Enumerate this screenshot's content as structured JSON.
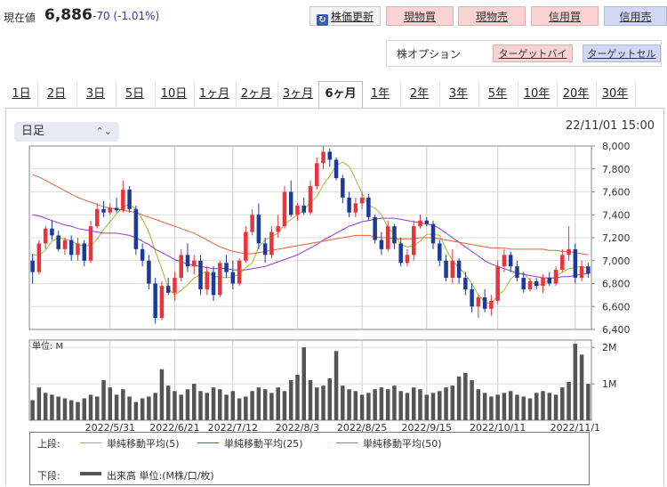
{
  "header": {
    "price_label": "現在値",
    "price": "6,886",
    "change": "-70 (-1.01%)",
    "update_button": "株価更新",
    "buttons": [
      "現物買",
      "現物売",
      "信用買",
      "信用売"
    ],
    "option_label": "株オプション",
    "option_buttons": [
      "ターゲットバイ",
      "ターゲットセル"
    ]
  },
  "tabs": [
    "1日",
    "2日",
    "3日",
    "5日",
    "10日",
    "1ヶ月",
    "2ヶ月",
    "3ヶ月",
    "6ヶ月",
    "1年",
    "2年",
    "3年",
    "5年",
    "10年",
    "20年",
    "30年"
  ],
  "active_tab": "6ヶ月",
  "selector": {
    "value": "日足"
  },
  "timestamp": "22/11/01 15:00",
  "colors": {
    "up": "#e8343c",
    "down": "#1b3a9a",
    "ma5": "#9bbf2c",
    "ma25": "#9b34d8",
    "ma50": "#e0663c",
    "volume": "#555555"
  },
  "chart_data": [
    {
      "type": "candlestick",
      "yticks": [
        "8,000",
        "7,800",
        "7,600",
        "7,400",
        "7,200",
        "7,000",
        "6,800",
        "6,600",
        "6,400"
      ],
      "ylim": [
        6400,
        8000
      ],
      "xticks": [
        "2022/5/31",
        "2022/6/21",
        "2022/7/12",
        "2022/8/3",
        "2022/8/25",
        "2022/9/15",
        "2022/10/11",
        "2022/11/1"
      ],
      "candles": [
        [
          7000,
          7060,
          6800,
          6900
        ],
        [
          6900,
          7180,
          6880,
          7150
        ],
        [
          7150,
          7300,
          7100,
          7280
        ],
        [
          7280,
          7350,
          7180,
          7220
        ],
        [
          7220,
          7260,
          7080,
          7100
        ],
        [
          7100,
          7200,
          7050,
          7180
        ],
        [
          7180,
          7220,
          7000,
          7050
        ],
        [
          7050,
          7200,
          7000,
          7150
        ],
        [
          7150,
          7180,
          6950,
          7000
        ],
        [
          7000,
          7350,
          6980,
          7300
        ],
        [
          7300,
          7500,
          7280,
          7450
        ],
        [
          7450,
          7520,
          7380,
          7420
        ],
        [
          7420,
          7500,
          7400,
          7460
        ],
        [
          7460,
          7550,
          7420,
          7440
        ],
        [
          7440,
          7700,
          7420,
          7620
        ],
        [
          7620,
          7650,
          7420,
          7450
        ],
        [
          7450,
          7480,
          7050,
          7100
        ],
        [
          7100,
          7150,
          6950,
          7000
        ],
        [
          7000,
          7050,
          6750,
          6800
        ],
        [
          6800,
          6850,
          6450,
          6500
        ],
        [
          6500,
          6820,
          6480,
          6780
        ],
        [
          6780,
          6850,
          6700,
          6720
        ],
        [
          6720,
          6900,
          6650,
          6850
        ],
        [
          6850,
          7100,
          6820,
          7050
        ],
        [
          7050,
          7150,
          6900,
          6950
        ],
        [
          6950,
          7050,
          6880,
          7000
        ],
        [
          7000,
          7050,
          6700,
          6750
        ],
        [
          6750,
          6950,
          6700,
          6900
        ],
        [
          6900,
          6950,
          6650,
          6700
        ],
        [
          6700,
          7000,
          6680,
          6980
        ],
        [
          6980,
          7050,
          6850,
          6900
        ],
        [
          6900,
          7000,
          6750,
          6800
        ],
        [
          6800,
          7020,
          6780,
          7000
        ],
        [
          7000,
          7300,
          6980,
          7250
        ],
        [
          7250,
          7450,
          7220,
          7400
        ],
        [
          7400,
          7500,
          7100,
          7150
        ],
        [
          7150,
          7200,
          6980,
          7050
        ],
        [
          7050,
          7300,
          7020,
          7250
        ],
        [
          7250,
          7400,
          7200,
          7300
        ],
        [
          7300,
          7650,
          7280,
          7600
        ],
        [
          7600,
          7700,
          7380,
          7400
        ],
        [
          7400,
          7500,
          7350,
          7480
        ],
        [
          7480,
          7550,
          7400,
          7420
        ],
        [
          7420,
          7700,
          7400,
          7650
        ],
        [
          7650,
          7900,
          7620,
          7850
        ],
        [
          7850,
          8000,
          7800,
          7950
        ],
        [
          7950,
          7980,
          7820,
          7880
        ],
        [
          7880,
          7900,
          7700,
          7720
        ],
        [
          7720,
          7750,
          7500,
          7550
        ],
        [
          7550,
          7600,
          7380,
          7420
        ],
        [
          7420,
          7550,
          7380,
          7500
        ],
        [
          7500,
          7600,
          7450,
          7550
        ],
        [
          7550,
          7580,
          7350,
          7380
        ],
        [
          7380,
          7400,
          7150,
          7180
        ],
        [
          7180,
          7250,
          7050,
          7100
        ],
        [
          7100,
          7350,
          7080,
          7300
        ],
        [
          7300,
          7320,
          7100,
          7150
        ],
        [
          7150,
          7200,
          6950,
          6980
        ],
        [
          6980,
          7100,
          6950,
          7050
        ],
        [
          7050,
          7350,
          7000,
          7300
        ],
        [
          7300,
          7400,
          7280,
          7350
        ],
        [
          7350,
          7380,
          7300,
          7320
        ],
        [
          7320,
          7350,
          7100,
          7150
        ],
        [
          7150,
          7180,
          6950,
          7000
        ],
        [
          7000,
          7050,
          6820,
          6850
        ],
        [
          6850,
          7100,
          6800,
          7000
        ],
        [
          7000,
          7020,
          6800,
          6850
        ],
        [
          6850,
          6900,
          6700,
          6750
        ],
        [
          6750,
          6800,
          6550,
          6600
        ],
        [
          6600,
          6700,
          6500,
          6680
        ],
        [
          6680,
          6750,
          6550,
          6580
        ],
        [
          6580,
          6700,
          6520,
          6650
        ],
        [
          6650,
          7000,
          6620,
          6950
        ],
        [
          6950,
          7100,
          6900,
          7050
        ],
        [
          7050,
          7080,
          6900,
          6950
        ],
        [
          6950,
          7000,
          6820,
          6850
        ],
        [
          6850,
          6900,
          6720,
          6750
        ],
        [
          6750,
          6850,
          6730,
          6820
        ],
        [
          6820,
          6850,
          6750,
          6780
        ],
        [
          6780,
          6880,
          6720,
          6850
        ],
        [
          6850,
          6900,
          6780,
          6800
        ],
        [
          6800,
          6950,
          6780,
          6920
        ],
        [
          6920,
          7100,
          6900,
          7050
        ],
        [
          7050,
          7300,
          7000,
          7100
        ],
        [
          7100,
          7150,
          6800,
          6850
        ],
        [
          6850,
          7000,
          6820,
          6950
        ],
        [
          6950,
          6980,
          6850,
          6886
        ]
      ],
      "series": [
        {
          "name": "単純移動平均(5)",
          "values": [
            7050,
            7050,
            7090,
            7170,
            7200,
            7190,
            7170,
            7140,
            7130,
            7130,
            7190,
            7270,
            7340,
            7410,
            7470,
            7490,
            7450,
            7360,
            7250,
            7080,
            6930,
            6760,
            6700,
            6740,
            6790,
            6850,
            6880,
            6910,
            6860,
            6860,
            6850,
            6860,
            6880,
            6940,
            6980,
            7120,
            7180,
            7210,
            7240,
            7320,
            7360,
            7400,
            7440,
            7510,
            7560,
            7660,
            7740,
            7830,
            7860,
            7820,
            7710,
            7590,
            7480,
            7460,
            7400,
            7290,
            7230,
            7140,
            7120,
            7130,
            7170,
            7230,
            7230,
            7220,
            7100,
            7000,
            6940,
            6880,
            6800,
            6700,
            6640,
            6620,
            6700,
            6740,
            6840,
            6890,
            6890,
            6830,
            6780,
            6800,
            6830,
            6860,
            6900,
            6930,
            6940,
            6950,
            6930
          ]
        },
        {
          "name": "単純移動平均(25)",
          "values": [
            7400,
            7390,
            7370,
            7350,
            7330,
            7310,
            7300,
            7280,
            7270,
            7260,
            7250,
            7240,
            7240,
            7240,
            7230,
            7220,
            7200,
            7170,
            7140,
            7100,
            7070,
            7040,
            7010,
            6990,
            6970,
            6960,
            6950,
            6940,
            6930,
            6930,
            6930,
            6920,
            6920,
            6920,
            6930,
            6940,
            6950,
            6970,
            6990,
            7010,
            7030,
            7050,
            7080,
            7110,
            7140,
            7180,
            7210,
            7240,
            7270,
            7300,
            7320,
            7340,
            7350,
            7360,
            7370,
            7370,
            7370,
            7360,
            7350,
            7340,
            7330,
            7320,
            7310,
            7280,
            7240,
            7200,
            7160,
            7120,
            7080,
            7040,
            7000,
            6970,
            6950,
            6930,
            6910,
            6890,
            6880,
            6870,
            6860,
            6850,
            6850,
            6850,
            6860,
            6860,
            6870,
            6880,
            6890
          ]
        },
        {
          "name": "単純移動平均(50)",
          "values": [
            7750,
            7730,
            7700,
            7670,
            7640,
            7610,
            7580,
            7550,
            7530,
            7510,
            7490,
            7470,
            7460,
            7450,
            7440,
            7430,
            7420,
            7400,
            7380,
            7360,
            7340,
            7320,
            7300,
            7280,
            7260,
            7240,
            7210,
            7180,
            7150,
            7120,
            7100,
            7080,
            7070,
            7060,
            7060,
            7070,
            7080,
            7090,
            7100,
            7110,
            7120,
            7130,
            7140,
            7150,
            7160,
            7170,
            7180,
            7190,
            7200,
            7210,
            7220,
            7220,
            7220,
            7210,
            7200,
            7200,
            7190,
            7190,
            7190,
            7190,
            7200,
            7200,
            7200,
            7190,
            7180,
            7170,
            7160,
            7150,
            7140,
            7130,
            7120,
            7110,
            7110,
            7110,
            7100,
            7100,
            7100,
            7100,
            7100,
            7100,
            7090,
            7090,
            7080,
            7080,
            7070,
            7060,
            7050
          ]
        }
      ]
    },
    {
      "type": "bar",
      "unit_label": "単位: M",
      "yticks": [
        "2M",
        "1M"
      ],
      "ylim": [
        0,
        2.2
      ],
      "values": [
        0.55,
        0.9,
        0.75,
        0.7,
        0.65,
        0.6,
        0.55,
        0.5,
        0.6,
        0.7,
        0.65,
        1.1,
        0.9,
        0.7,
        0.85,
        0.65,
        0.5,
        0.6,
        0.65,
        0.75,
        1.4,
        0.95,
        0.8,
        0.7,
        0.85,
        1.0,
        0.8,
        0.75,
        0.9,
        0.85,
        0.7,
        0.8,
        0.6,
        0.65,
        0.8,
        0.9,
        0.85,
        0.75,
        0.9,
        0.8,
        1.1,
        1.25,
        2.0,
        1.1,
        0.9,
        0.95,
        1.15,
        1.9,
        0.95,
        0.85,
        0.8,
        0.7,
        0.75,
        0.85,
        0.9,
        0.85,
        0.95,
        0.8,
        0.75,
        0.9,
        0.85,
        0.7,
        0.75,
        0.8,
        0.9,
        0.95,
        1.2,
        1.3,
        1.1,
        0.85,
        0.75,
        0.65,
        0.7,
        0.75,
        0.8,
        0.7,
        0.65,
        0.6,
        0.75,
        0.8,
        0.75,
        0.7,
        0.9,
        1.05,
        2.1,
        1.8,
        1.0
      ]
    }
  ],
  "legend": {
    "upper_label": "上段:",
    "lower_label": "下段:",
    "ma5": "単純移動平均(5)",
    "ma25": "単純移動平均(25)",
    "ma50": "単純移動平均(50)",
    "volume": "出来高 単位:(M株/口/枚)"
  }
}
